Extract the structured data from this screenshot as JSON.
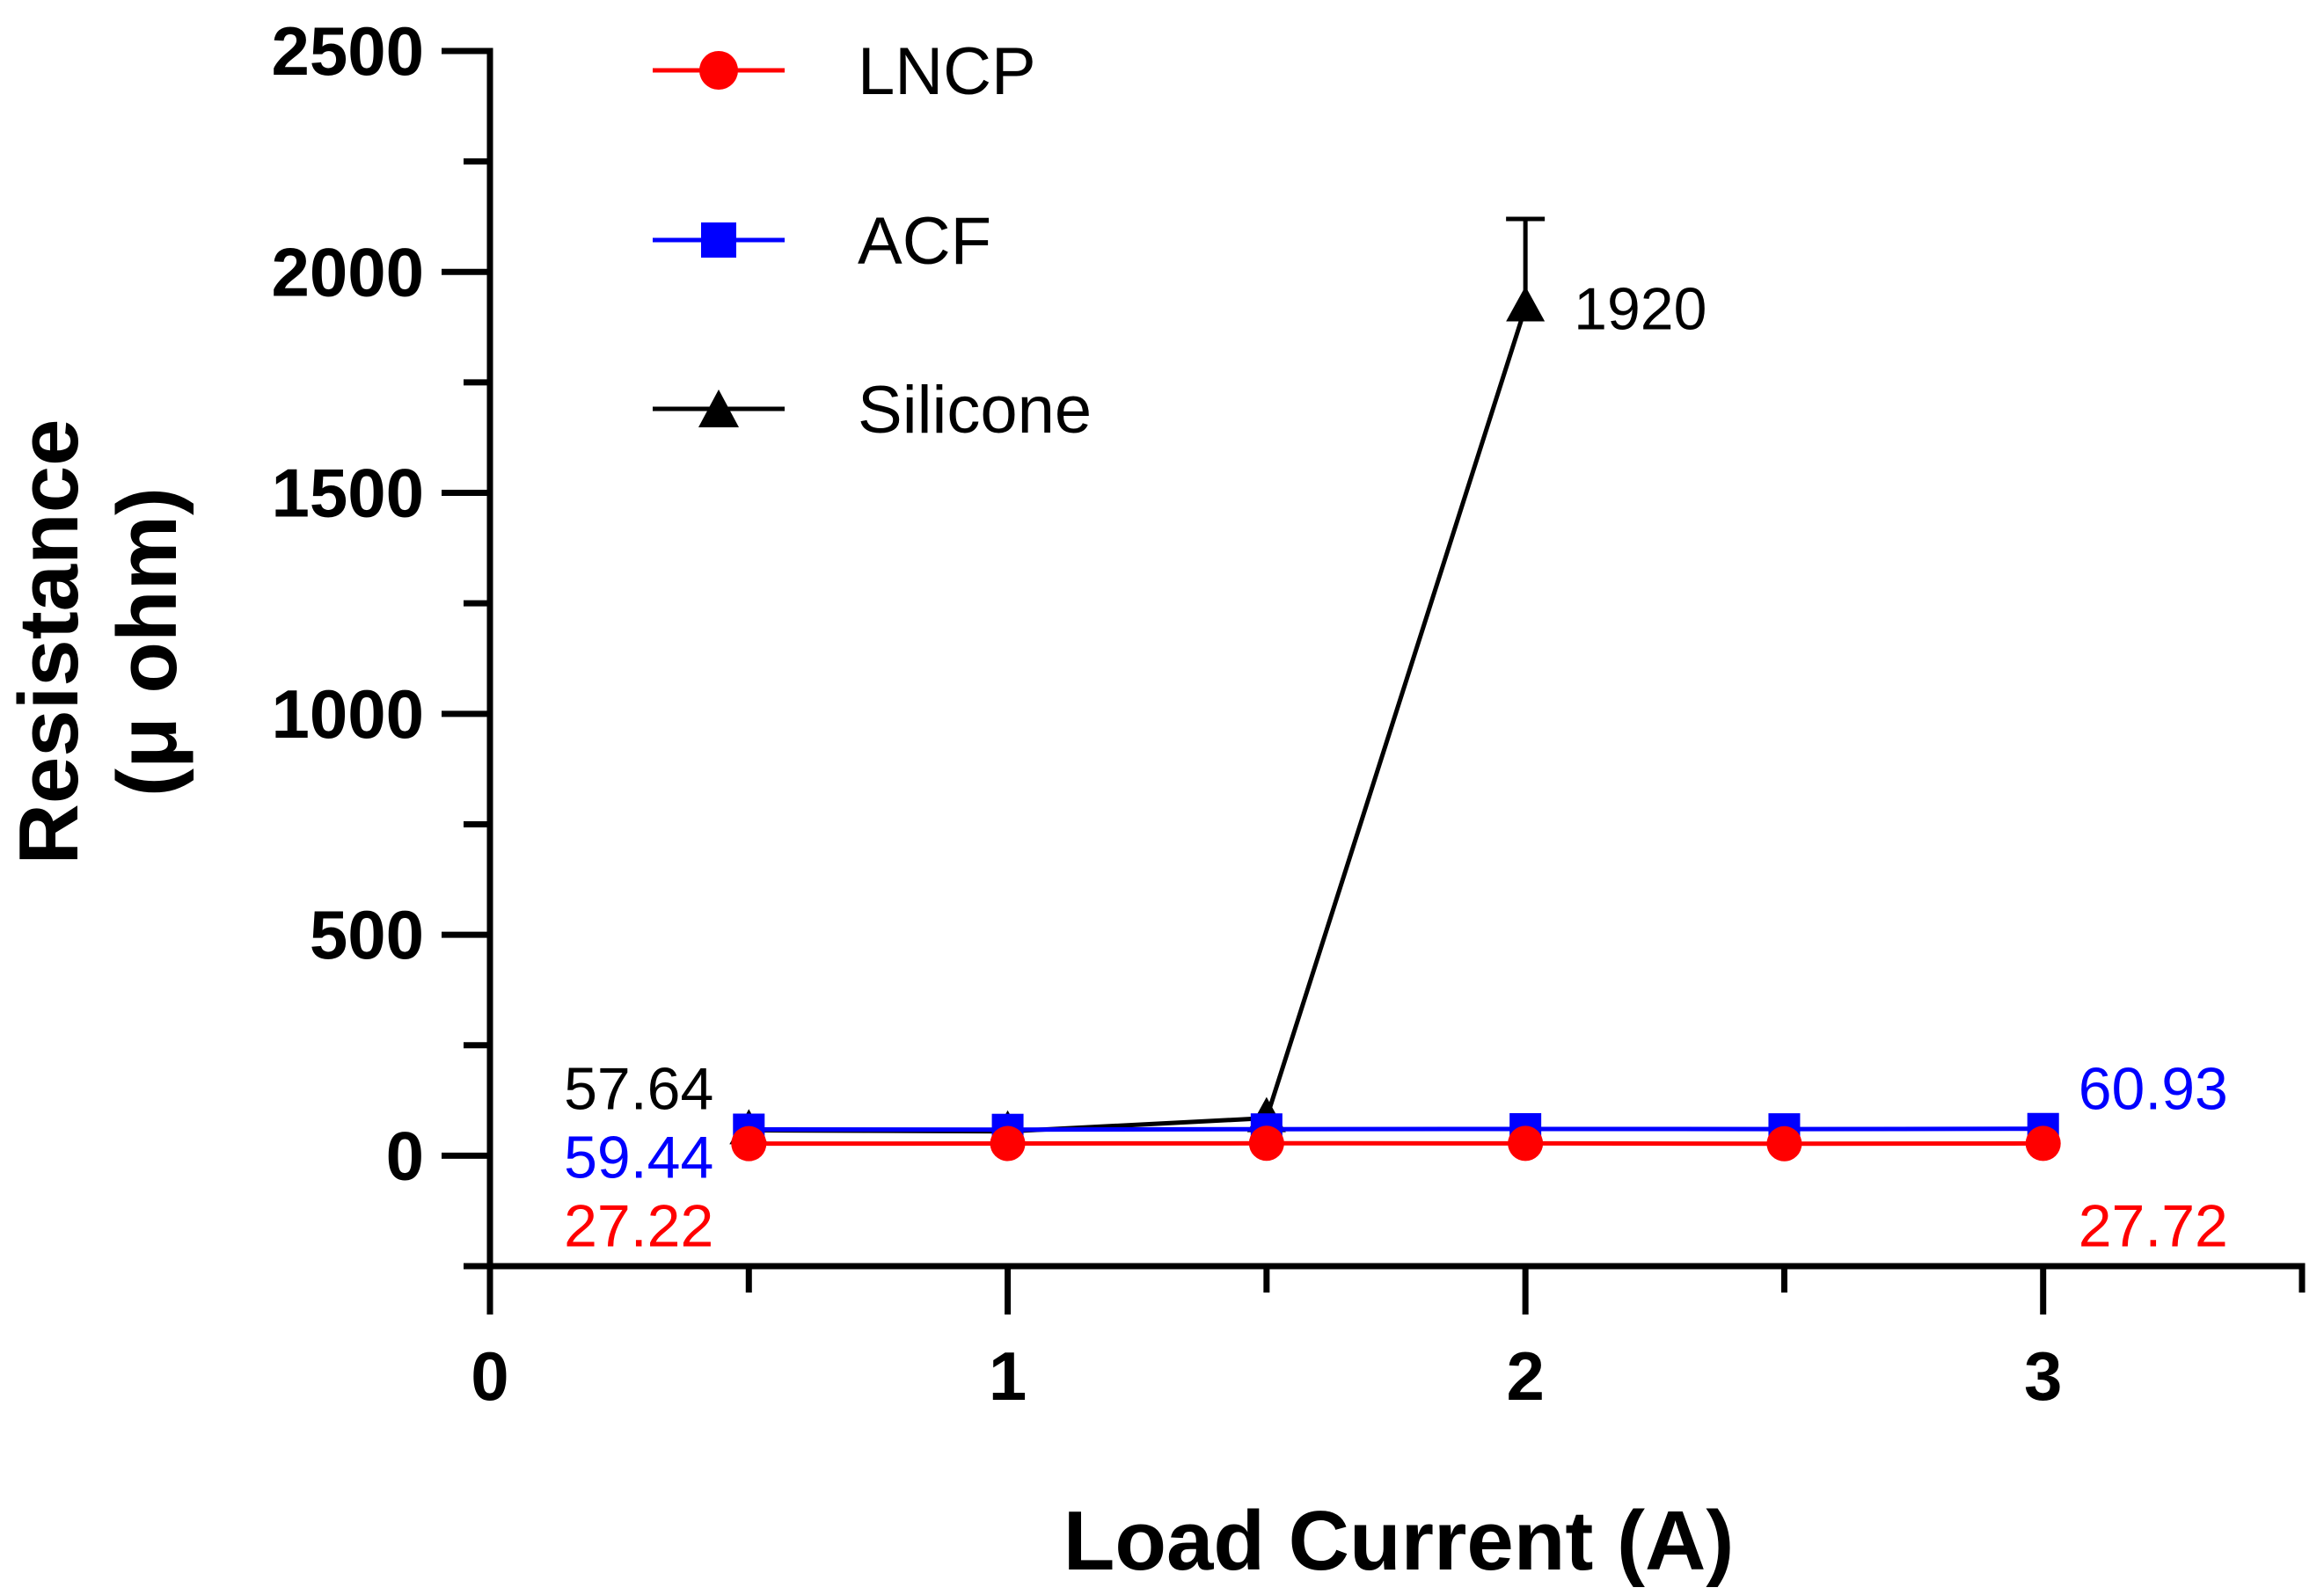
{
  "chart_data": {
    "type": "line",
    "title": "",
    "xlabel": "Load Current (A)",
    "ylabel_line1": "Resistance",
    "ylabel_line2": "(μ ohm)",
    "xlim": [
      0,
      3.5
    ],
    "ylim": [
      -250,
      2500
    ],
    "xticks": [
      0,
      1,
      2,
      3
    ],
    "xtick_labels": [
      "0",
      "1",
      "2",
      "3"
    ],
    "x_minor_ticks": [
      0.5,
      1.5,
      2.5,
      3.5
    ],
    "yticks": [
      0,
      500,
      1000,
      1500,
      2000,
      2500
    ],
    "ytick_labels": [
      "0",
      "500",
      "1000",
      "1500",
      "2000",
      "2500"
    ],
    "y_minor_ticks": [
      -250,
      250,
      750,
      1250,
      1750,
      2250
    ],
    "grid": false,
    "legend_position": "top-left",
    "series": [
      {
        "name": "LNCP",
        "color": "#ff0000",
        "marker": "circle",
        "x": [
          0.5,
          1.0,
          1.5,
          2.0,
          2.5,
          3.0
        ],
        "values": [
          27.22,
          27.5,
          28.0,
          27.9,
          27.0,
          27.72
        ]
      },
      {
        "name": "ACF",
        "color": "#0000ff",
        "marker": "square",
        "x": [
          0.5,
          1.0,
          1.5,
          2.0,
          2.5,
          3.0
        ],
        "values": [
          59.44,
          59.0,
          60.0,
          60.5,
          60.2,
          60.93
        ]
      },
      {
        "name": "Silicone",
        "color": "#000000",
        "marker": "triangle",
        "x": [
          0.5,
          1.0,
          1.5,
          2.0
        ],
        "values": [
          57.64,
          55.0,
          85.0,
          1920
        ],
        "error_upper": [
          0,
          0,
          0,
          200
        ]
      }
    ],
    "annotations": [
      {
        "text": "57.64",
        "color": "#000000",
        "x": 0.5,
        "y": 57.64,
        "side": "left",
        "row": -1
      },
      {
        "text": "59.44",
        "color": "#0000ff",
        "x": 0.5,
        "y": 59.44,
        "side": "left",
        "row": 0
      },
      {
        "text": "27.22",
        "color": "#ff0000",
        "x": 0.5,
        "y": 27.22,
        "side": "left",
        "row": 1
      },
      {
        "text": "60.93",
        "color": "#0000ff",
        "x": 3.0,
        "y": 60.93,
        "side": "right",
        "row": -1
      },
      {
        "text": "27.72",
        "color": "#ff0000",
        "x": 3.0,
        "y": 27.72,
        "side": "right",
        "row": 1
      },
      {
        "text": "1920",
        "color": "#000000",
        "x": 2.0,
        "y": 1920,
        "side": "right",
        "row": 0
      }
    ]
  }
}
